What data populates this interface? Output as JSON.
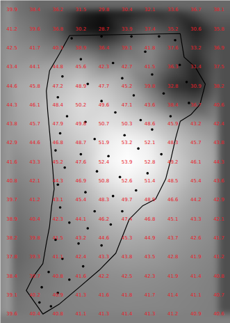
{
  "chart_data": {
    "type": "map",
    "tick_labels": false,
    "data_labels": true,
    "cells": [
      [
        39.9,
        38.4,
        36.2,
        31.5,
        29.8,
        30.4,
        32.1,
        33.6,
        36.7,
        38.1
      ],
      [
        41.2,
        39.6,
        36.8,
        30.2,
        28.7,
        33.9,
        37.4,
        35.2,
        30.6,
        35.8
      ],
      [
        42.5,
        41.7,
        40.3,
        38.9,
        36.4,
        39.1,
        41.8,
        37.6,
        33.2,
        36.9
      ],
      [
        43.4,
        44.1,
        44.8,
        45.6,
        42.3,
        42.7,
        41.5,
        36.3,
        31.4,
        37.5
      ],
      [
        44.6,
        45.8,
        47.2,
        48.9,
        47.7,
        45.2,
        39.8,
        32.8,
        30.9,
        38.2
      ],
      [
        44.3,
        46.1,
        48.4,
        50.2,
        49.6,
        47.1,
        43.6,
        38.4,
        36.7,
        40.6
      ],
      [
        43.8,
        45.7,
        47.9,
        49.8,
        50.7,
        50.3,
        48.6,
        45.9,
        43.2,
        42.4
      ],
      [
        42.9,
        44.6,
        46.8,
        48.7,
        51.9,
        53.2,
        52.1,
        48.3,
        45.7,
        43.8
      ],
      [
        41.6,
        43.3,
        45.2,
        47.6,
        52.4,
        53.9,
        52.8,
        49.2,
        46.1,
        44.3
      ],
      [
        40.8,
        42.1,
        44.3,
        46.9,
        50.8,
        52.6,
        51.4,
        48.5,
        45.4,
        43.6
      ],
      [
        39.7,
        41.2,
        43.1,
        45.4,
        48.3,
        49.7,
        48.9,
        46.6,
        44.2,
        42.9
      ],
      [
        38.9,
        40.4,
        42.3,
        44.1,
        46.2,
        47.4,
        46.8,
        45.1,
        43.3,
        42.1
      ],
      [
        38.2,
        39.8,
        41.5,
        43.2,
        44.6,
        45.3,
        44.9,
        43.7,
        42.6,
        41.7
      ],
      [
        37.8,
        39.3,
        41.1,
        42.4,
        43.3,
        43.8,
        43.5,
        42.8,
        41.9,
        41.2
      ],
      [
        38.4,
        39.7,
        40.8,
        41.6,
        42.2,
        42.5,
        42.3,
        41.9,
        41.4,
        40.8
      ],
      [
        39.1,
        40.2,
        40.9,
        41.3,
        41.6,
        41.8,
        41.7,
        41.4,
        41.1,
        40.7
      ],
      [
        39.6,
        40.4,
        40.8,
        41.1,
        41.3,
        41.4,
        41.3,
        41.2,
        40.9,
        40.6
      ]
    ],
    "boundary": [
      [
        2.51,
        1.35
      ],
      [
        7.32,
        1.25
      ],
      [
        7.49,
        2.49
      ],
      [
        7.98,
        3.02
      ],
      [
        8.41,
        3.91
      ],
      [
        8.18,
        4.98
      ],
      [
        7.78,
        5.52
      ],
      [
        7.32,
        5.87
      ],
      [
        7.12,
        6.76
      ],
      [
        6.92,
        7.83
      ],
      [
        6.69,
        8.9
      ],
      [
        6.25,
        9.96
      ],
      [
        5.68,
        10.32
      ],
      [
        5.1,
        11.03
      ],
      [
        4.81,
        11.92
      ],
      [
        4.52,
        12.81
      ],
      [
        3.8,
        13.7
      ],
      [
        2.94,
        14.59
      ],
      [
        2.07,
        15.48
      ],
      [
        1.35,
        16.01
      ],
      [
        0.63,
        14.77
      ],
      [
        0.92,
        14.06
      ],
      [
        1.35,
        13.35
      ],
      [
        1.5,
        12.28
      ],
      [
        1.64,
        11.39
      ],
      [
        1.73,
        10.32
      ],
      [
        1.84,
        9.43
      ],
      [
        1.79,
        8.54
      ],
      [
        1.73,
        7.65
      ],
      [
        1.64,
        6.41
      ],
      [
        1.56,
        5.34
      ],
      [
        1.5,
        4.27
      ],
      [
        1.64,
        3.2
      ],
      [
        2.07,
        2.31
      ]
    ],
    "points": [
      [
        2.6,
        1.5
      ],
      [
        3.9,
        1.4
      ],
      [
        5.2,
        1.4
      ],
      [
        6.4,
        1.4
      ],
      [
        7.1,
        1.6
      ],
      [
        3.0,
        2.6
      ],
      [
        4.4,
        2.8
      ],
      [
        5.8,
        2.2
      ],
      [
        7.3,
        2.9
      ],
      [
        2.2,
        3.5
      ],
      [
        3.3,
        3.9
      ],
      [
        4.8,
        3.6
      ],
      [
        6.1,
        3.4
      ],
      [
        7.6,
        3.8
      ],
      [
        2.0,
        4.6
      ],
      [
        3.9,
        4.8
      ],
      [
        5.3,
        4.5
      ],
      [
        6.6,
        4.4
      ],
      [
        7.7,
        4.9
      ],
      [
        2.4,
        5.6
      ],
      [
        3.2,
        5.9
      ],
      [
        4.5,
        5.4
      ],
      [
        5.6,
        5.8
      ],
      [
        6.9,
        5.6
      ],
      [
        2.1,
        6.5
      ],
      [
        3.6,
        6.8
      ],
      [
        4.9,
        6.6
      ],
      [
        6.1,
        6.3
      ],
      [
        1.9,
        7.4
      ],
      [
        3.0,
        7.6
      ],
      [
        4.2,
        7.7
      ],
      [
        5.5,
        7.3
      ],
      [
        6.5,
        7.6
      ],
      [
        2.3,
        8.3
      ],
      [
        3.7,
        8.5
      ],
      [
        4.7,
        8.8
      ],
      [
        5.9,
        8.6
      ],
      [
        2.0,
        9.2
      ],
      [
        3.2,
        9.6
      ],
      [
        4.4,
        9.8
      ],
      [
        5.4,
        9.5
      ],
      [
        2.1,
        10.4
      ],
      [
        3.6,
        10.6
      ],
      [
        4.8,
        10.6
      ],
      [
        2.5,
        11.2
      ],
      [
        3.3,
        11.5
      ],
      [
        4.3,
        11.3
      ],
      [
        1.9,
        12.1
      ],
      [
        2.9,
        12.3
      ],
      [
        3.9,
        12.4
      ],
      [
        2.2,
        13.1
      ],
      [
        3.1,
        13.5
      ],
      [
        1.6,
        13.8
      ],
      [
        2.5,
        14.2
      ],
      [
        1.3,
        14.6
      ],
      [
        2.0,
        14.9
      ],
      [
        1.2,
        15.4
      ],
      [
        1.7,
        15.6
      ]
    ]
  }
}
